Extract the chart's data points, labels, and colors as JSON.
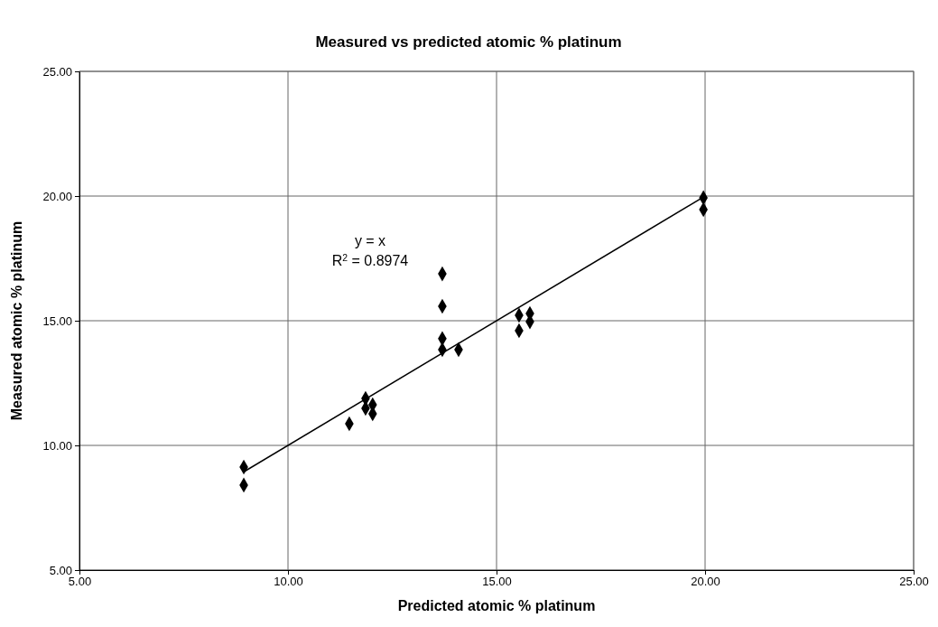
{
  "chart_data": {
    "type": "scatter",
    "title": "Measured vs predicted atomic % platinum",
    "xlabel": "Predicted atomic % platinum",
    "ylabel": "Measured atomic % platinum",
    "xlim": [
      5,
      25
    ],
    "ylim": [
      5,
      25
    ],
    "xticks": [
      {
        "value": 5,
        "label": "5.00"
      },
      {
        "value": 10,
        "label": "10.00"
      },
      {
        "value": 15,
        "label": "15.00"
      },
      {
        "value": 20,
        "label": "20.00"
      },
      {
        "value": 25,
        "label": "25.00"
      }
    ],
    "yticks": [
      {
        "value": 5,
        "label": "5.00"
      },
      {
        "value": 10,
        "label": "10.00"
      },
      {
        "value": 15,
        "label": "15.00"
      },
      {
        "value": 20,
        "label": "20.00"
      },
      {
        "value": 25,
        "label": "25.00"
      }
    ],
    "grid": true,
    "series": [
      {
        "color": "#000000",
        "marker": "diamond",
        "x": [
          8.94,
          8.94,
          11.47,
          11.86,
          11.86,
          12.03,
          12.03,
          13.7,
          13.7,
          13.7,
          13.7,
          14.09,
          15.54,
          15.54,
          15.8,
          15.8,
          19.96,
          19.96
        ],
        "values": [
          9.13,
          8.41,
          10.87,
          11.88,
          11.49,
          11.63,
          11.27,
          16.88,
          15.58,
          14.28,
          13.84,
          13.84,
          15.22,
          14.6,
          15.29,
          14.96,
          19.93,
          19.46
        ]
      },
      {
        "type": "line",
        "color": "#000000",
        "marker": "none",
        "line_style": "solid",
        "x": [
          8.94,
          19.96
        ],
        "values": [
          8.94,
          19.96
        ]
      }
    ],
    "annotations": [
      "y = x",
      "R$^{2}$ = 0.8974"
    ]
  }
}
